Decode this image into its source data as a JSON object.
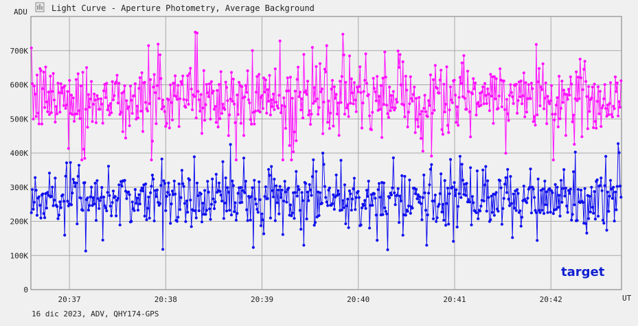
{
  "window": {
    "title": "Light Curve - Aperture Photometry, Average Background",
    "icon": "light-curve-icon"
  },
  "footer": {
    "info": "16 dic 2023, ADV, QHY174-GPS"
  },
  "colors": {
    "background": "#f0f0f0",
    "plot_background": "#f0f0f0",
    "grid": "#a8a8a8",
    "series_magenta": "#ff10ff",
    "series_blue": "#1010ee",
    "label_blue": "#1020d0"
  },
  "chart_data": {
    "type": "line",
    "title": "Light Curve - Aperture Photometry, Average Background",
    "ylabel": "ADU",
    "xlabel": "UT",
    "ylim": [
      0,
      800000
    ],
    "yticks": [
      {
        "value": 0,
        "label": "0"
      },
      {
        "value": 100000,
        "label": "100K"
      },
      {
        "value": 200000,
        "label": "200K"
      },
      {
        "value": 300000,
        "label": "300K"
      },
      {
        "value": 400000,
        "label": "400K"
      },
      {
        "value": 500000,
        "label": "500K"
      },
      {
        "value": 600000,
        "label": "600K"
      },
      {
        "value": 700000,
        "label": "700K"
      }
    ],
    "xlim": [
      "20:36:36",
      "20:42:44"
    ],
    "xticks": [
      "20:37",
      "20:38",
      "20:39",
      "20:40",
      "20:41",
      "20:42"
    ],
    "grid": true,
    "series": [
      {
        "name": "",
        "color": "#ff10ff",
        "mean": 560000,
        "range": [
          380000,
          780000
        ]
      },
      {
        "name": "target",
        "color": "#1010ee",
        "mean": 265000,
        "range": [
          100000,
          430000
        ]
      }
    ],
    "annotations": [
      {
        "text": "target",
        "position": "bottom-right"
      }
    ]
  }
}
